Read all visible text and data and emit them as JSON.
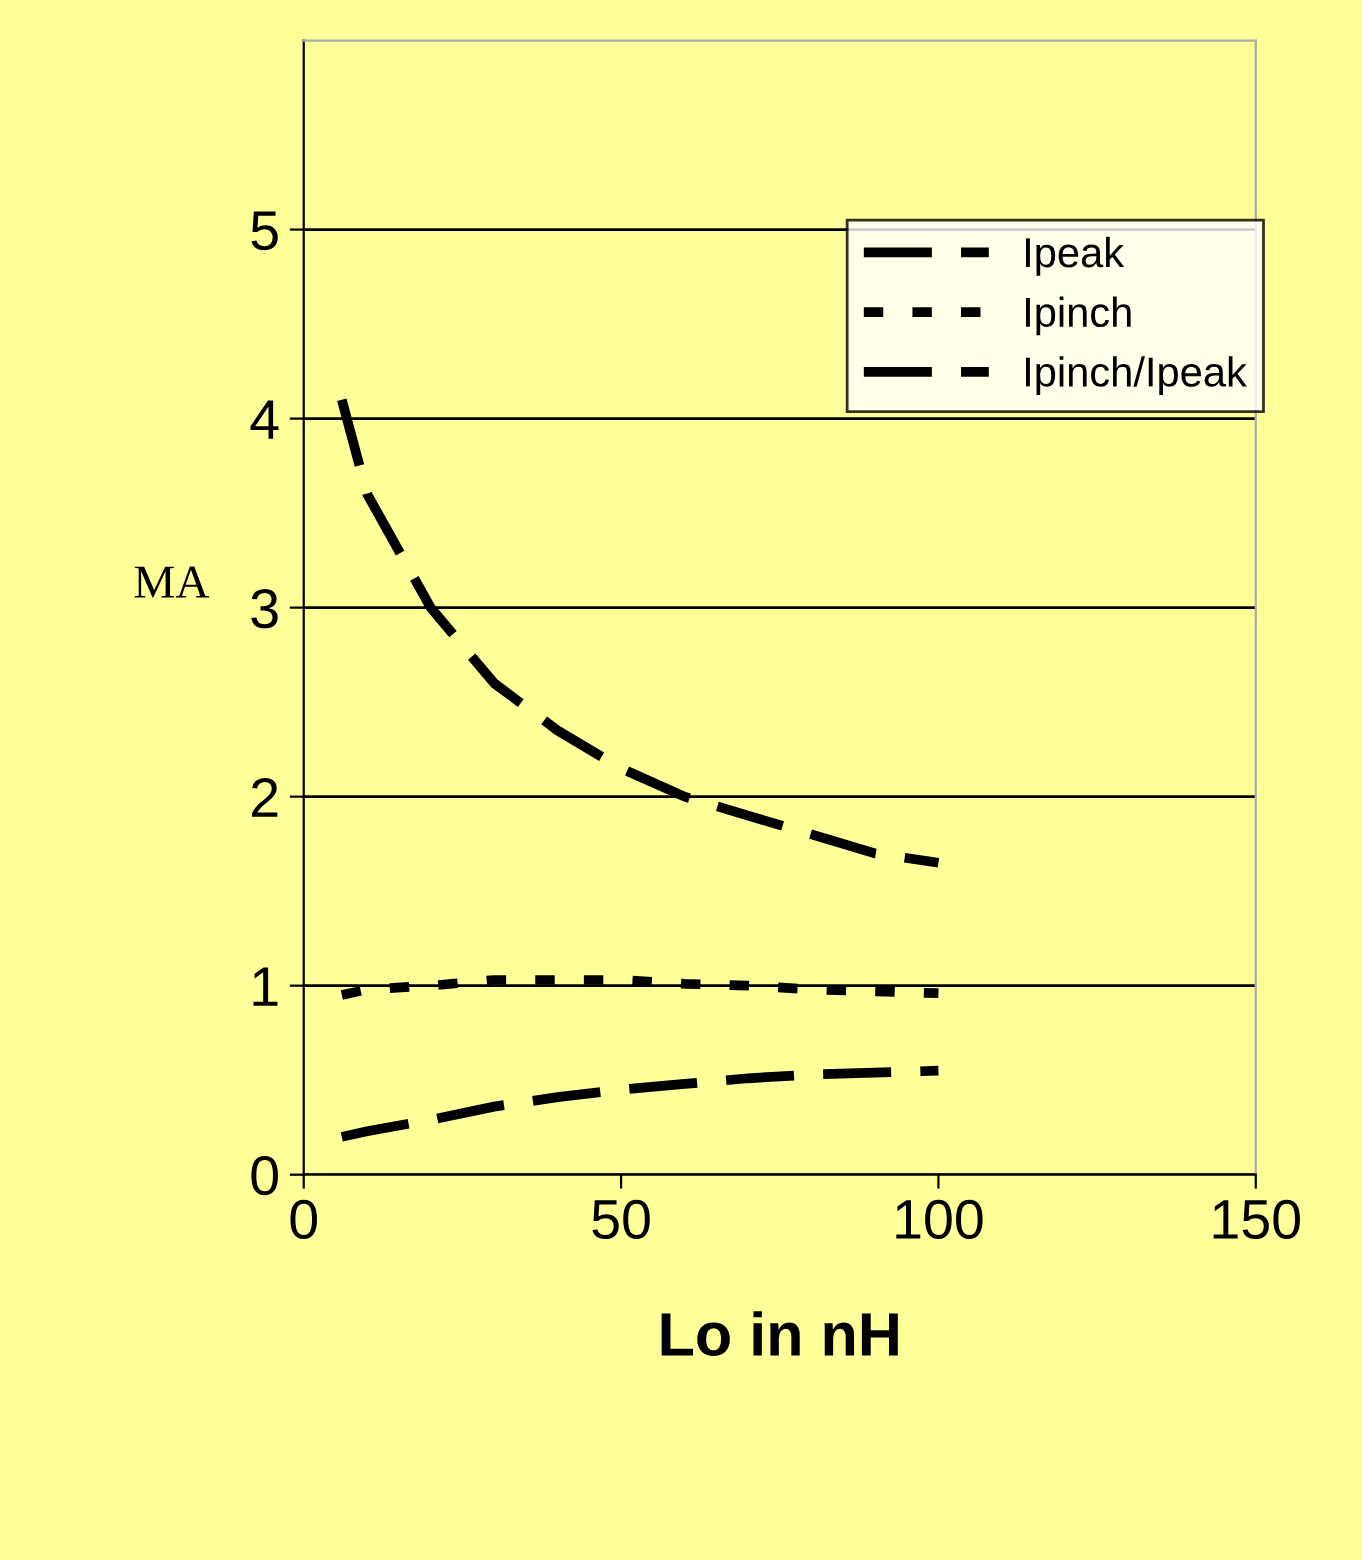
{
  "chart_data": {
    "type": "line",
    "xlabel": "Lo in nH",
    "ylabel": "MA",
    "x": [
      6,
      10,
      20,
      30,
      40,
      50,
      60,
      70,
      80,
      90,
      100
    ],
    "series": [
      {
        "name": "Ipeak",
        "color": "#000000",
        "line_style": "dashed",
        "values": [
          4.1,
          3.6,
          3.0,
          2.6,
          2.35,
          2.15,
          2.0,
          1.9,
          1.8,
          1.7,
          1.65
        ]
      },
      {
        "name": "Ipinch",
        "color": "#000000",
        "line_style": "dotted",
        "values": [
          0.95,
          0.98,
          1.0,
          1.03,
          1.03,
          1.03,
          1.01,
          1.0,
          0.98,
          0.97,
          0.96
        ]
      },
      {
        "name": "Ipinch/Ipeak",
        "color": "#000000",
        "line_style": "dashed",
        "values": [
          0.2,
          0.23,
          0.29,
          0.36,
          0.41,
          0.45,
          0.48,
          0.51,
          0.53,
          0.54,
          0.55
        ]
      }
    ],
    "xlim": [
      0,
      150
    ],
    "xticks": [
      0,
      50,
      100,
      150
    ],
    "ylim": [
      0,
      6
    ],
    "yticks": [
      0,
      1,
      2,
      3,
      4,
      5
    ],
    "grid": "y",
    "legend": "top right",
    "marker": "none"
  }
}
